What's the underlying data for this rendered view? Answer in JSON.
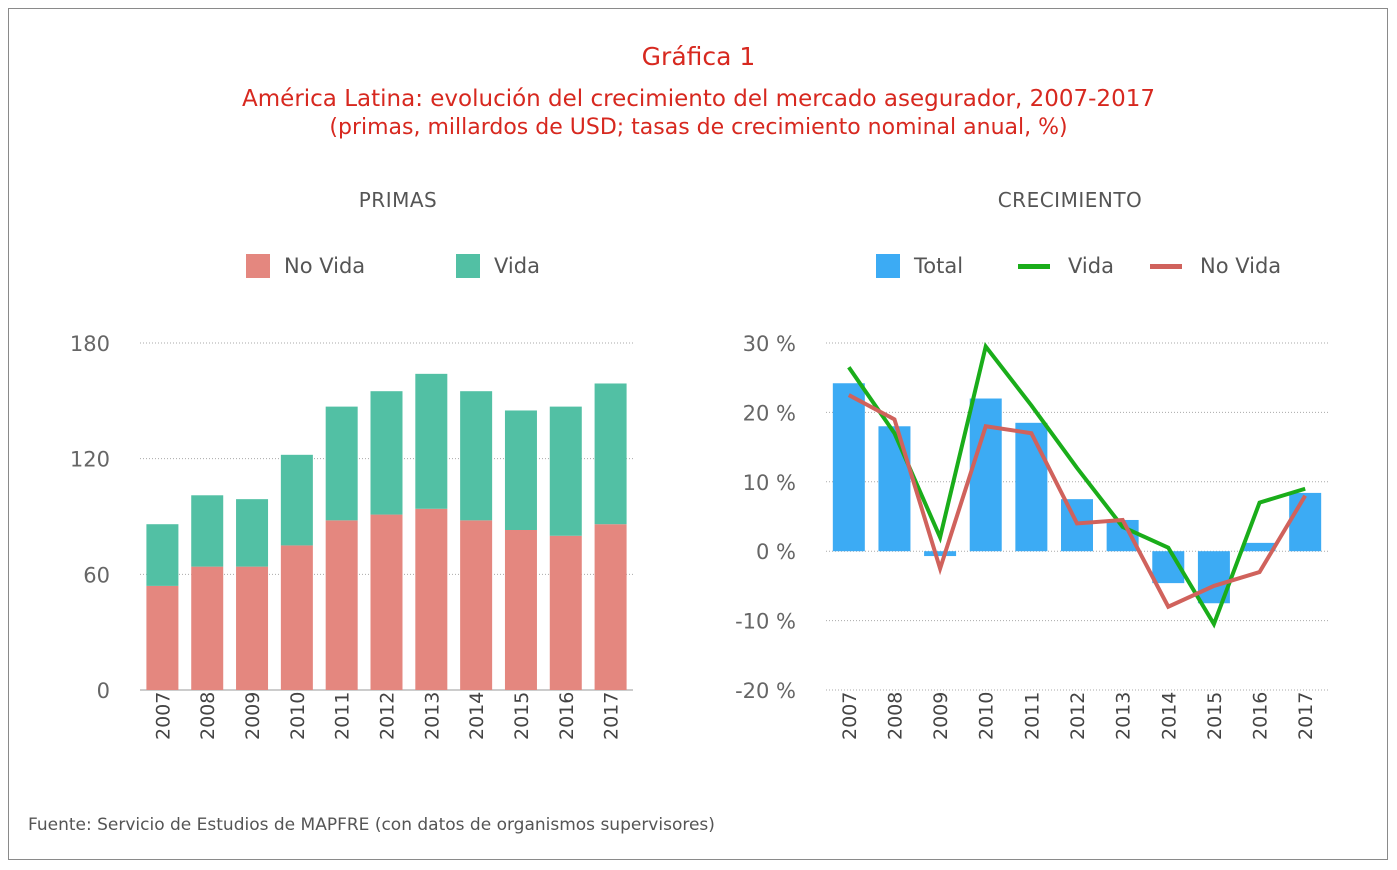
{
  "header": {
    "title": "Gráfica 1",
    "subtitle": "América Latina: evolución del crecimiento del mercado asegurador, 2007-2017",
    "subtitle2": "(primas, millardos de USD; tasas de crecimiento nominal anual, %)"
  },
  "source": "Fuente: Servicio de Estudios de MAPFRE (con datos de organismos supervisores)",
  "colors": {
    "no_vida_bar": "#e4877f",
    "vida_bar": "#52c0a4",
    "total_bar": "#3cabf4",
    "vida_line": "#1aad1a",
    "no_vida_line": "#d0625c",
    "title_red": "#d7281f"
  },
  "chart_data": [
    {
      "type": "bar",
      "stacked": true,
      "title": "PRIMAS",
      "categories": [
        "2007",
        "2008",
        "2009",
        "2010",
        "2011",
        "2012",
        "2013",
        "2014",
        "2015",
        "2016",
        "2017"
      ],
      "series": [
        {
          "name": "No Vida",
          "values": [
            54,
            64,
            64,
            75,
            88,
            91,
            94,
            88,
            83,
            80,
            86
          ]
        },
        {
          "name": "Vida",
          "values": [
            32,
            37,
            35,
            47,
            59,
            64,
            70,
            67,
            62,
            67,
            73
          ]
        }
      ],
      "ylim": [
        0,
        180
      ],
      "yticks": [
        "0",
        "60",
        "120",
        "180"
      ],
      "grid": true,
      "legend": "top"
    },
    {
      "type": "bar",
      "title": "CRECIMIENTO",
      "categories": [
        "2007",
        "2008",
        "2009",
        "2010",
        "2011",
        "2012",
        "2013",
        "2014",
        "2015",
        "2016",
        "2017"
      ],
      "series": [
        {
          "name": "Total",
          "type": "bar",
          "values": [
            24.2,
            18,
            -0.7,
            22,
            18.5,
            7.5,
            4.5,
            -4.6,
            -7.5,
            1.2,
            8.4
          ]
        },
        {
          "name": "Vida",
          "type": "line",
          "values": [
            26.5,
            17,
            2,
            29.5,
            21,
            12,
            3.5,
            0.5,
            -10.5,
            7,
            9
          ]
        },
        {
          "name": "No Vida",
          "type": "line",
          "values": [
            22.5,
            19,
            -2.5,
            18,
            17,
            4,
            4.5,
            -8,
            -5,
            -3,
            8
          ]
        }
      ],
      "ylim": [
        -20,
        30
      ],
      "yticks": [
        "30 %",
        "20 %",
        "10 %",
        "0 %",
        "-10 %",
        "-20 %"
      ],
      "grid": true,
      "legend": "top"
    }
  ]
}
